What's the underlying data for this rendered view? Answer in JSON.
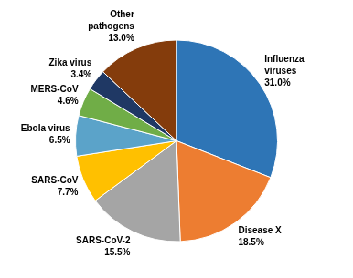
{
  "chart_data": {
    "type": "pie",
    "categories": [
      "Influenza\nviruses",
      "Disease X",
      "SARS-CoV-2",
      "SARS-CoV",
      "Ebola virus",
      "MERS-CoV",
      "Zika virus",
      "Other\npathogens"
    ],
    "values": [
      31.0,
      18.5,
      15.5,
      7.7,
      6.5,
      4.6,
      3.4,
      13.0
    ],
    "value_labels": [
      "31.0%",
      "18.5%",
      "15.5%",
      "7.7%",
      "6.5%",
      "4.6%",
      "3.4%",
      "13.0%"
    ],
    "colors": [
      "#2E75B6",
      "#ED7D31",
      "#A5A5A5",
      "#FFC000",
      "#5BA3C9",
      "#70AD47",
      "#1F3864",
      "#843C0C"
    ],
    "data_labels": true,
    "legend": false
  }
}
